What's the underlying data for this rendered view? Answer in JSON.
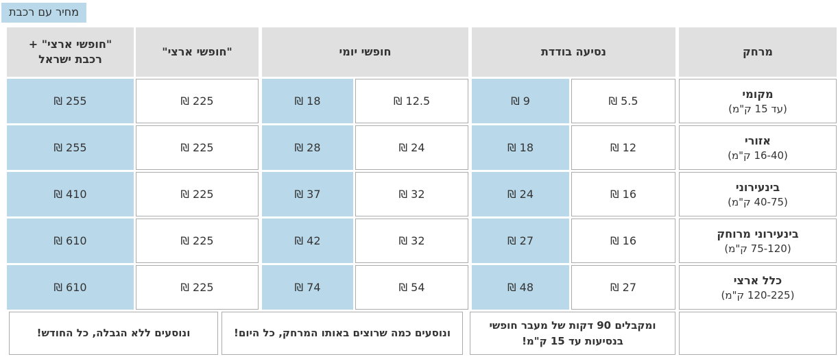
{
  "page_label": "מחיר עם רכבת",
  "colors": {
    "highlight_blue": "#b9d9ea",
    "header_gray": "#e0e0e0",
    "border_gray": "#ababab",
    "text": "#333333"
  },
  "table": {
    "headers": {
      "national_pass_plus_rail": "\"חופשי ארצי\" + רכבת ישראל",
      "national_pass": "\"חופשי ארצי\"",
      "daily_pass": "חופשי יומי",
      "single_ride": "נסיעה בודדת",
      "distance": "מרחק"
    },
    "rows": [
      {
        "distance_name": "מקומי",
        "distance_range": "(עד 15 ק\"מ)",
        "prices": {
          "single_white": "5.5 ₪",
          "single_blue": "9 ₪",
          "daily_white": "12.5 ₪",
          "daily_blue": "18 ₪",
          "national": "225 ₪",
          "national_rail": "255 ₪"
        }
      },
      {
        "distance_name": "אזורי",
        "distance_range": "(16-40 ק\"מ)",
        "prices": {
          "single_white": "12 ₪",
          "single_blue": "18 ₪",
          "daily_white": "24 ₪",
          "daily_blue": "28 ₪",
          "national": "225 ₪",
          "national_rail": "255 ₪"
        }
      },
      {
        "distance_name": "בינעירוני",
        "distance_range": "(40-75 ק\"מ)",
        "prices": {
          "single_white": "16 ₪",
          "single_blue": "24 ₪",
          "daily_white": "32 ₪",
          "daily_blue": "37 ₪",
          "national": "225 ₪",
          "national_rail": "410 ₪"
        }
      },
      {
        "distance_name": "בינעירוני מרוחק",
        "distance_range": "(75-120 ק\"מ)",
        "prices": {
          "single_white": "16 ₪",
          "single_blue": "27 ₪",
          "daily_white": "32 ₪",
          "daily_blue": "42 ₪",
          "national": "225 ₪",
          "national_rail": "610 ₪"
        }
      },
      {
        "distance_name": "כלל ארצי",
        "distance_range": "(120-225 ק\"מ)",
        "prices": {
          "single_white": "27 ₪",
          "single_blue": "48 ₪",
          "daily_white": "54 ₪",
          "daily_blue": "74 ₪",
          "national": "225 ₪",
          "national_rail": "610 ₪"
        }
      }
    ],
    "footer": {
      "monthly_note": "ונוסעים ללא הגבלה, כל החודש!",
      "daily_pass_note": "ונוסעים כמה שרוצים באותו המרחק, כל היום!",
      "single_ride_note": "ומקבלים 90 דקות של מעבר חופשי בנסיעות עד 15 ק\"מ!"
    }
  }
}
